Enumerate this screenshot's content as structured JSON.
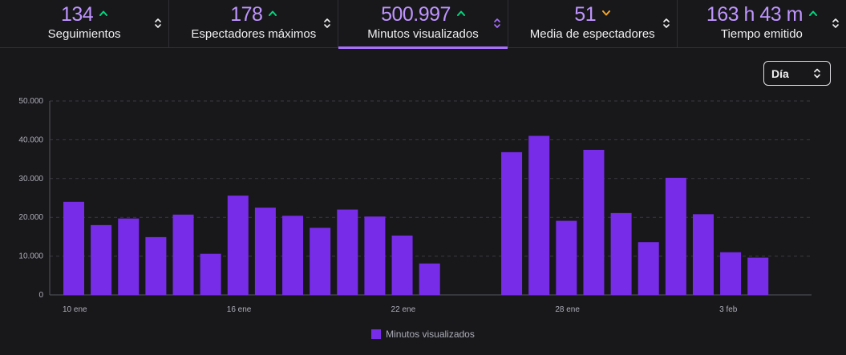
{
  "stats": [
    {
      "value": "134",
      "label": "Seguimientos",
      "trend": "up"
    },
    {
      "value": "178",
      "label": "Espectadores máximos",
      "trend": "up"
    },
    {
      "value": "500.997",
      "label": "Minutos visualizados",
      "trend": "up",
      "active": true
    },
    {
      "value": "51",
      "label": "Media de espectadores",
      "trend": "down"
    },
    {
      "value": "163 h 43 m",
      "label": "Tiempo emitido",
      "trend": "up"
    }
  ],
  "period_select": {
    "value": "Día"
  },
  "colors": {
    "accent": "#a970ff",
    "bar": "#772ce8",
    "trend_up": "#00d87f",
    "trend_down": "#f5a623"
  },
  "chart_data": {
    "type": "bar",
    "categories": [
      "10 ene",
      "11 ene",
      "12 ene",
      "13 ene",
      "14 ene",
      "15 ene",
      "16 ene",
      "17 ene",
      "18 ene",
      "19 ene",
      "20 ene",
      "21 ene",
      "22 ene",
      "23 ene",
      "24 ene",
      "25 ene",
      "26 ene",
      "27 ene",
      "28 ene",
      "29 ene",
      "30 ene",
      "31 ene",
      "1 feb",
      "2 feb",
      "3 feb",
      "4 feb",
      "5 feb"
    ],
    "x_tick_labels": [
      "10 ene",
      "16 ene",
      "22 ene",
      "28 ene",
      "3 feb"
    ],
    "series": [
      {
        "name": "Minutos visualizados",
        "values": [
          24000,
          18000,
          19700,
          14900,
          20700,
          10600,
          25600,
          22500,
          20400,
          17300,
          22000,
          20200,
          15300,
          8100,
          0,
          0,
          36800,
          41000,
          19100,
          37400,
          21100,
          13600,
          30200,
          20800,
          11000,
          9600,
          0
        ]
      }
    ],
    "y_ticks": [
      "0",
      "10.000",
      "20.000",
      "30.000",
      "40.000",
      "50.000"
    ],
    "ylim": [
      0,
      50000
    ],
    "grid": true,
    "legend": "bottom-center"
  }
}
